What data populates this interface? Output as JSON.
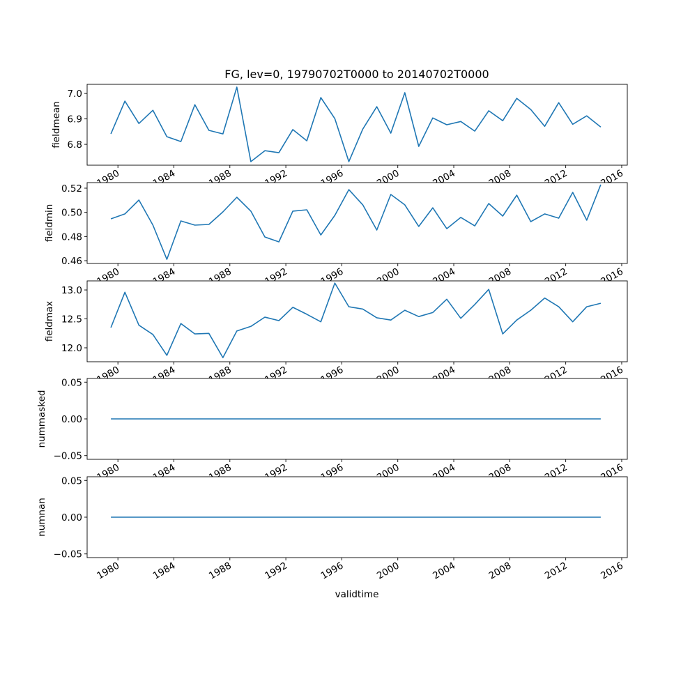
{
  "chart_data": {
    "type": "line",
    "title": "FG, lev=0, 19790702T0000 to 20140702T0000",
    "xlabel": "validtime",
    "x": [
      1979.5,
      1980.5,
      1981.5,
      1982.5,
      1983.5,
      1984.5,
      1985.5,
      1986.5,
      1987.5,
      1988.5,
      1989.5,
      1990.5,
      1991.5,
      1992.5,
      1993.5,
      1994.5,
      1995.5,
      1996.5,
      1997.5,
      1998.5,
      1999.5,
      2000.5,
      2001.5,
      2002.5,
      2003.5,
      2004.5,
      2005.5,
      2006.5,
      2007.5,
      2008.5,
      2009.5,
      2010.5,
      2011.5,
      2012.5,
      2013.5,
      2014.5
    ],
    "xlim": [
      1977.8,
      2016.4
    ],
    "xticks": [
      1980,
      1984,
      1988,
      1992,
      1996,
      2000,
      2004,
      2008,
      2012,
      2016
    ],
    "xtick_labels": [
      "1980",
      "1984",
      "1988",
      "1992",
      "1996",
      "2000",
      "2004",
      "2008",
      "2012",
      "2016"
    ],
    "color": "#1f77b4",
    "panels": [
      {
        "ylabel": "fieldmean",
        "ylim": [
          6.718,
          7.036
        ],
        "yticks": [
          6.8,
          6.9,
          7.0
        ],
        "ytick_labels": [
          "6.8",
          "6.9",
          "7.0"
        ],
        "values": [
          6.841,
          6.97,
          6.882,
          6.934,
          6.83,
          6.811,
          6.956,
          6.855,
          6.841,
          7.025,
          6.732,
          6.775,
          6.767,
          6.858,
          6.814,
          6.984,
          6.901,
          6.732,
          6.86,
          6.948,
          6.844,
          7.003,
          6.792,
          6.904,
          6.877,
          6.89,
          6.852,
          6.932,
          6.893,
          6.981,
          6.937,
          6.871,
          6.964,
          6.879,
          6.912,
          6.868
        ]
      },
      {
        "ylabel": "fieldmin",
        "ylim": [
          0.4577,
          0.5246
        ],
        "yticks": [
          0.46,
          0.48,
          0.5,
          0.52
        ],
        "ytick_labels": [
          "0.46",
          "0.48",
          "0.50",
          "0.52"
        ],
        "values": [
          0.4946,
          0.4987,
          0.5102,
          0.4894,
          0.4611,
          0.4929,
          0.4894,
          0.49,
          0.5004,
          0.5125,
          0.501,
          0.4796,
          0.4756,
          0.501,
          0.5021,
          0.4813,
          0.4975,
          0.5188,
          0.5062,
          0.4854,
          0.5148,
          0.5062,
          0.4883,
          0.5038,
          0.4865,
          0.4958,
          0.4888,
          0.5073,
          0.4969,
          0.5142,
          0.4923,
          0.4987,
          0.4952,
          0.5165,
          0.4935,
          0.5229
        ]
      },
      {
        "ylabel": "fieldmax",
        "ylim": [
          11.759,
          13.157
        ],
        "yticks": [
          12.0,
          12.5,
          13.0
        ],
        "ytick_labels": [
          "12.0",
          "12.5",
          "13.0"
        ],
        "values": [
          12.35,
          12.96,
          12.39,
          12.23,
          11.87,
          12.42,
          12.24,
          12.25,
          11.83,
          12.29,
          12.37,
          12.53,
          12.47,
          12.7,
          12.58,
          12.45,
          13.12,
          12.71,
          12.67,
          12.52,
          12.48,
          12.65,
          12.54,
          12.61,
          12.84,
          12.51,
          12.75,
          13.01,
          12.24,
          12.48,
          12.65,
          12.86,
          12.71,
          12.45,
          12.71,
          12.77
        ]
      },
      {
        "ylabel": "nummasked",
        "ylim": [
          -0.055,
          0.055
        ],
        "yticks": [
          -0.05,
          0.0,
          0.05
        ],
        "ytick_labels": [
          "−0.05",
          "0.00",
          "0.05"
        ],
        "values": [
          0,
          0,
          0,
          0,
          0,
          0,
          0,
          0,
          0,
          0,
          0,
          0,
          0,
          0,
          0,
          0,
          0,
          0,
          0,
          0,
          0,
          0,
          0,
          0,
          0,
          0,
          0,
          0,
          0,
          0,
          0,
          0,
          0,
          0,
          0,
          0
        ]
      },
      {
        "ylabel": "numnan",
        "ylim": [
          -0.055,
          0.055
        ],
        "yticks": [
          -0.05,
          0.0,
          0.05
        ],
        "ytick_labels": [
          "−0.05",
          "0.00",
          "0.05"
        ],
        "values": [
          0,
          0,
          0,
          0,
          0,
          0,
          0,
          0,
          0,
          0,
          0,
          0,
          0,
          0,
          0,
          0,
          0,
          0,
          0,
          0,
          0,
          0,
          0,
          0,
          0,
          0,
          0,
          0,
          0,
          0,
          0,
          0,
          0,
          0,
          0,
          0
        ]
      }
    ]
  }
}
